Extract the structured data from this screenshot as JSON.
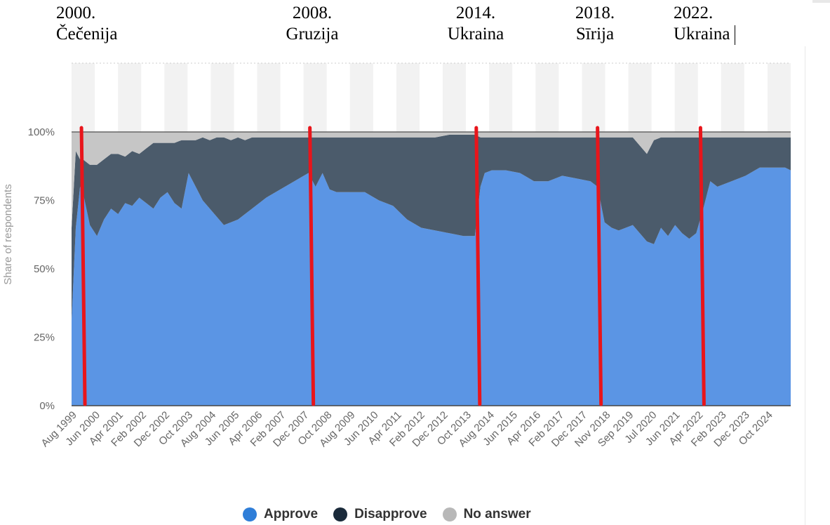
{
  "annotations": [
    {
      "year": "2000.",
      "label": "Čečenija"
    },
    {
      "year": "2008.",
      "label": "Gruzija"
    },
    {
      "year": "2014.",
      "label": "Ukraina"
    },
    {
      "year": "2018.",
      "label": "Sīrija"
    },
    {
      "year": "2022.",
      "label": "Ukraina"
    }
  ],
  "colors": {
    "approve": "#5b95e4",
    "disapprove": "#4b5b6b",
    "no_answer": "#c6c6c6",
    "event_line": "#e8151b",
    "legend_approve": "#2f7ed8",
    "legend_disapprove": "#1a2a3a",
    "legend_no_answer": "#b8b8b8"
  },
  "chart_data": {
    "type": "area",
    "stacked": true,
    "ylabel": "Share of respondents",
    "ylim": [
      0,
      120
    ],
    "yticks": [
      "0%",
      "25%",
      "50%",
      "75%",
      "100%"
    ],
    "ytick_values": [
      0,
      25,
      50,
      75,
      100
    ],
    "xticks": [
      "Aug 1999",
      "Jun 2000",
      "Apr 2001",
      "Feb 2002",
      "Dec 2002",
      "Oct 2003",
      "Aug 2004",
      "Jun 2005",
      "Apr 2006",
      "Feb 2007",
      "Dec 2007",
      "Oct 2008",
      "Aug 2009",
      "Jun 2010",
      "Apr 2011",
      "Feb 2012",
      "Dec 2012",
      "Oct 2013",
      "Aug 2014",
      "Jun 2015",
      "Apr 2016",
      "Feb 2017",
      "Dec 2017",
      "Nov 2018",
      "Sep 2019",
      "Jul 2020",
      "Jun 2021",
      "Apr 2022",
      "Feb 2023",
      "Dec 2023",
      "Oct 2024"
    ],
    "x": [
      1999.6,
      1999.75,
      1999.9,
      2000.0,
      2000.25,
      2000.5,
      2000.75,
      2001.0,
      2001.25,
      2001.5,
      2001.75,
      2002.0,
      2002.25,
      2002.5,
      2002.75,
      2003.0,
      2003.25,
      2003.5,
      2003.75,
      2004.0,
      2004.25,
      2004.5,
      2004.75,
      2005.0,
      2005.25,
      2005.5,
      2005.75,
      2006.0,
      2006.5,
      2007.0,
      2007.5,
      2008.0,
      2008.25,
      2008.5,
      2008.75,
      2009.0,
      2009.5,
      2010.0,
      2010.5,
      2011.0,
      2011.5,
      2012.0,
      2012.5,
      2013.0,
      2013.5,
      2013.9,
      2014.1,
      2014.25,
      2014.5,
      2015.0,
      2015.5,
      2016.0,
      2016.5,
      2017.0,
      2017.5,
      2018.0,
      2018.25,
      2018.5,
      2018.75,
      2019.0,
      2019.5,
      2020.0,
      2020.25,
      2020.5,
      2020.75,
      2021.0,
      2021.25,
      2021.5,
      2021.75,
      2022.0,
      2022.25,
      2022.5,
      2023.0,
      2023.5,
      2024.0,
      2024.5,
      2024.9,
      2025.1
    ],
    "series": [
      {
        "name": "Approve",
        "values": [
          31,
          65,
          80,
          78,
          66,
          62,
          68,
          72,
          70,
          74,
          73,
          76,
          74,
          72,
          76,
          78,
          74,
          72,
          85,
          80,
          75,
          72,
          69,
          66,
          67,
          68,
          70,
          72,
          76,
          79,
          82,
          85,
          80,
          85,
          79,
          78,
          78,
          78,
          75,
          73,
          68,
          65,
          64,
          63,
          62,
          62,
          80,
          85,
          86,
          86,
          85,
          82,
          82,
          84,
          83,
          82,
          80,
          67,
          65,
          64,
          66,
          60,
          59,
          65,
          62,
          66,
          63,
          61,
          63,
          72,
          82,
          80,
          82,
          84,
          87,
          87,
          87,
          86
        ]
      },
      {
        "name": "Disapprove",
        "values": [
          34,
          28,
          10,
          12,
          22,
          26,
          22,
          20,
          22,
          17,
          20,
          16,
          20,
          24,
          20,
          18,
          22,
          25,
          12,
          17,
          23,
          25,
          29,
          32,
          30,
          30,
          27,
          26,
          22,
          19,
          16,
          13,
          18,
          13,
          19,
          20,
          20,
          20,
          23,
          25,
          30,
          33,
          34,
          36,
          37,
          37,
          18,
          13,
          12,
          12,
          13,
          16,
          16,
          14,
          15,
          16,
          18,
          31,
          33,
          34,
          32,
          32,
          38,
          33,
          36,
          32,
          35,
          37,
          35,
          26,
          16,
          18,
          16,
          14,
          11,
          11,
          11,
          12
        ]
      },
      {
        "name": "No answer",
        "values": [
          35,
          7,
          10,
          10,
          12,
          12,
          10,
          8,
          8,
          9,
          7,
          8,
          6,
          4,
          4,
          4,
          4,
          3,
          3,
          3,
          2,
          3,
          2,
          2,
          3,
          2,
          3,
          2,
          2,
          2,
          2,
          2,
          2,
          2,
          2,
          2,
          2,
          2,
          2,
          2,
          2,
          2,
          2,
          1,
          1,
          1,
          2,
          2,
          2,
          2,
          2,
          2,
          2,
          2,
          2,
          2,
          2,
          2,
          2,
          2,
          2,
          8,
          3,
          2,
          2,
          2,
          2,
          2,
          2,
          2,
          2,
          2,
          2,
          2,
          2,
          2,
          2,
          2
        ]
      }
    ],
    "event_lines": [
      2000.0,
      2008.1,
      2014.0,
      2018.3,
      2021.95
    ],
    "legend_position": "bottom-center",
    "grid": false
  }
}
